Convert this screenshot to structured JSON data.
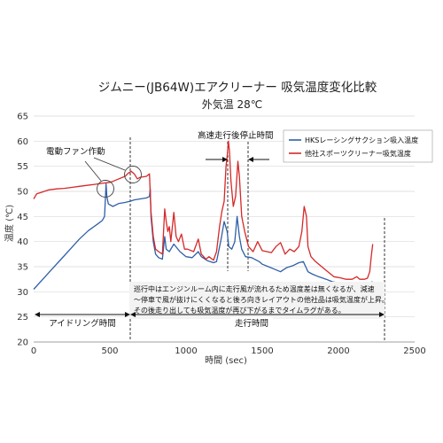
{
  "chart_data": {
    "type": "line",
    "title": "ジムニー(JB64W)エアクリーナー 吸気温度変化比較",
    "subtitle": "外気温 28℃",
    "xlabel": "時間 (sec)",
    "ylabel": "温度 (℃)",
    "xlim": [
      0,
      2500
    ],
    "ylim": [
      20,
      65
    ],
    "xticks": [
      0,
      500,
      1000,
      1500,
      2000,
      2500
    ],
    "yticks": [
      20,
      25,
      30,
      35,
      40,
      45,
      50,
      55,
      60,
      65
    ],
    "grid": "horizontal",
    "legend_position": "top-right",
    "series": [
      {
        "name": "HKSレーシングサクション吸入温度",
        "color": "#2f5fa8",
        "points": [
          [
            0,
            30.5
          ],
          [
            60,
            32.5
          ],
          [
            120,
            34.5
          ],
          [
            180,
            36.5
          ],
          [
            240,
            38.5
          ],
          [
            300,
            40.5
          ],
          [
            360,
            42.2
          ],
          [
            420,
            43.5
          ],
          [
            450,
            44.2
          ],
          [
            465,
            45
          ],
          [
            470,
            48
          ],
          [
            475,
            51.5
          ],
          [
            480,
            49
          ],
          [
            490,
            47.5
          ],
          [
            520,
            47
          ],
          [
            560,
            47.6
          ],
          [
            600,
            47.8
          ],
          [
            630,
            48
          ],
          [
            660,
            48.3
          ],
          [
            700,
            48.5
          ],
          [
            740,
            48.7
          ],
          [
            760,
            49
          ],
          [
            765,
            50.5
          ],
          [
            770,
            45
          ],
          [
            785,
            40
          ],
          [
            800,
            37.5
          ],
          [
            820,
            36.8
          ],
          [
            845,
            36.5
          ],
          [
            860,
            41
          ],
          [
            870,
            38.5
          ],
          [
            890,
            38
          ],
          [
            920,
            39.5
          ],
          [
            960,
            38
          ],
          [
            1000,
            37
          ],
          [
            1040,
            36.8
          ],
          [
            1080,
            38
          ],
          [
            1100,
            37
          ],
          [
            1140,
            36.2
          ],
          [
            1180,
            35.8
          ],
          [
            1200,
            36
          ],
          [
            1230,
            40.5
          ],
          [
            1250,
            44
          ],
          [
            1270,
            42
          ],
          [
            1280,
            39
          ],
          [
            1300,
            38.5
          ],
          [
            1320,
            40
          ],
          [
            1335,
            45
          ],
          [
            1350,
            41
          ],
          [
            1365,
            38.5
          ],
          [
            1390,
            37
          ],
          [
            1430,
            36.8
          ],
          [
            1480,
            36
          ],
          [
            1500,
            35.5
          ],
          [
            1540,
            35
          ],
          [
            1580,
            34.5
          ],
          [
            1620,
            34
          ],
          [
            1660,
            34.8
          ],
          [
            1700,
            35.2
          ],
          [
            1740,
            35.8
          ],
          [
            1770,
            36
          ],
          [
            1785,
            35
          ],
          [
            1800,
            34
          ],
          [
            1830,
            33.5
          ],
          [
            1870,
            33
          ],
          [
            1920,
            32.5
          ],
          [
            1960,
            32
          ],
          [
            2000,
            31.8
          ],
          [
            2040,
            31.7
          ],
          [
            2080,
            31.6
          ],
          [
            2120,
            31.8
          ],
          [
            2160,
            31.8
          ],
          [
            2200,
            31.8
          ],
          [
            2225,
            32
          ]
        ]
      },
      {
        "name": "他社スポーツクリーナー吸気温度",
        "color": "#d62828",
        "points": [
          [
            0,
            48.5
          ],
          [
            20,
            49.5
          ],
          [
            50,
            49.8
          ],
          [
            100,
            50.3
          ],
          [
            150,
            50.5
          ],
          [
            200,
            50.6
          ],
          [
            250,
            50.8
          ],
          [
            300,
            51
          ],
          [
            350,
            51.2
          ],
          [
            400,
            51.4
          ],
          [
            450,
            51.6
          ],
          [
            500,
            51.8
          ],
          [
            520,
            52
          ],
          [
            560,
            52.5
          ],
          [
            600,
            53
          ],
          [
            620,
            53.6
          ],
          [
            640,
            54
          ],
          [
            660,
            53.5
          ],
          [
            680,
            52.5
          ],
          [
            700,
            52.8
          ],
          [
            740,
            53
          ],
          [
            760,
            53.5
          ],
          [
            770,
            46
          ],
          [
            785,
            41
          ],
          [
            800,
            38.5
          ],
          [
            820,
            38
          ],
          [
            845,
            37.5
          ],
          [
            860,
            46.5
          ],
          [
            870,
            44
          ],
          [
            880,
            42
          ],
          [
            890,
            43
          ],
          [
            900,
            40
          ],
          [
            920,
            45.8
          ],
          [
            935,
            41
          ],
          [
            950,
            40
          ],
          [
            970,
            41.5
          ],
          [
            990,
            38.5
          ],
          [
            1010,
            38.5
          ],
          [
            1050,
            38
          ],
          [
            1080,
            40.5
          ],
          [
            1100,
            37.5
          ],
          [
            1130,
            36.5
          ],
          [
            1150,
            37
          ],
          [
            1180,
            36.3
          ],
          [
            1200,
            38
          ],
          [
            1220,
            43
          ],
          [
            1235,
            46
          ],
          [
            1250,
            48
          ],
          [
            1262,
            55
          ],
          [
            1270,
            57
          ],
          [
            1278,
            60
          ],
          [
            1285,
            58
          ],
          [
            1295,
            52
          ],
          [
            1310,
            47
          ],
          [
            1325,
            49
          ],
          [
            1340,
            56
          ],
          [
            1350,
            53
          ],
          [
            1365,
            45
          ],
          [
            1385,
            42
          ],
          [
            1410,
            39
          ],
          [
            1440,
            38
          ],
          [
            1470,
            40
          ],
          [
            1500,
            38.2
          ],
          [
            1530,
            38
          ],
          [
            1560,
            37.8
          ],
          [
            1590,
            39
          ],
          [
            1620,
            39.8
          ],
          [
            1650,
            37.5
          ],
          [
            1680,
            38.5
          ],
          [
            1710,
            38
          ],
          [
            1740,
            39
          ],
          [
            1760,
            42
          ],
          [
            1775,
            47
          ],
          [
            1790,
            45
          ],
          [
            1800,
            39
          ],
          [
            1820,
            37
          ],
          [
            1850,
            36
          ],
          [
            1890,
            35
          ],
          [
            1930,
            34
          ],
          [
            1970,
            33
          ],
          [
            2010,
            32.8
          ],
          [
            2050,
            32.5
          ],
          [
            2090,
            32.5
          ],
          [
            2120,
            33
          ],
          [
            2140,
            32.5
          ],
          [
            2170,
            32.5
          ],
          [
            2190,
            32.7
          ],
          [
            2205,
            34
          ],
          [
            2215,
            37
          ],
          [
            2225,
            39.5
          ]
        ]
      }
    ],
    "annotations": {
      "fan_label": "電動ファン作動",
      "stop_label": "高速走行後停止時間",
      "idle_label": "アイドリング時間",
      "drive_label": "走行時間",
      "note_lines": [
        "巡行中はエンジンルーム内に走行風が流れるため温度差は無くなるが、減速",
        "～停車で風が抜けにくくなると後ろ向きレイアウトの他社品は吸気温度が上昇。",
        "その後走り出しても吸気温度が再び下がるまでタイムラグがある。"
      ]
    }
  }
}
